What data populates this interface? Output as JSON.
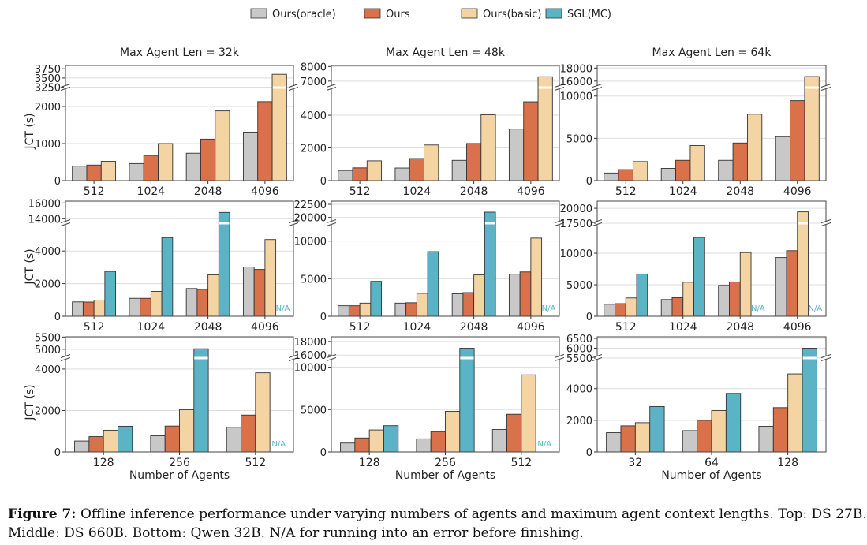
{
  "legend": [
    {
      "name": "Ours(oracle)",
      "color": "#c8c8c8"
    },
    {
      "name": "Ours",
      "color": "#d9714a"
    },
    {
      "name": "Ours(basic)",
      "color": "#f3d4a2"
    },
    {
      "name": "SGL(MC)",
      "color": "#5bb4c6"
    }
  ],
  "caption": {
    "label": "Figure 7:",
    "line1": " Offline inference performance under varying numbers of agents and maximum agent context lengths. Top: DS 27B.",
    "line2": "Middle: DS 660B. Bottom: Qwen 32B. N/A for running into an error before finishing."
  },
  "chart_data": [
    {
      "type": "bar",
      "title": "Max Agent Len = 32k",
      "ylabel": "JCT (s)",
      "xlabel": "",
      "categories": [
        "512",
        "1024",
        "2048",
        "4096"
      ],
      "broken_axis": true,
      "ylim_lower": [
        0,
        2510
      ],
      "ylim_upper": [
        3240,
        3840
      ],
      "yticks_lower": [
        0,
        1000,
        2000
      ],
      "yticks_upper": [
        3250,
        3500,
        3750
      ],
      "grid": true,
      "series": [
        {
          "name": "Ours(oracle)",
          "values": [
            390,
            460,
            740,
            1310
          ]
        },
        {
          "name": "Ours",
          "values": [
            420,
            680,
            1120,
            2130
          ]
        },
        {
          "name": "Ours(basic)",
          "values": [
            520,
            1000,
            1880,
            3600
          ]
        }
      ]
    },
    {
      "type": "bar",
      "title": "Max Agent Len = 48k",
      "ylabel": "",
      "xlabel": "",
      "categories": [
        "512",
        "1024",
        "2048",
        "4096"
      ],
      "broken_axis": true,
      "ylim_lower": [
        0,
        5690
      ],
      "ylim_upper": [
        6560,
        8070
      ],
      "yticks_lower": [
        0,
        2000,
        4000
      ],
      "yticks_upper": [
        7000,
        8000
      ],
      "grid": true,
      "series": [
        {
          "name": "Ours(oracle)",
          "values": [
            620,
            770,
            1240,
            3150
          ]
        },
        {
          "name": "Ours",
          "values": [
            780,
            1350,
            2270,
            4820
          ]
        },
        {
          "name": "Ours(basic)",
          "values": [
            1210,
            2180,
            4030,
            7300
          ]
        }
      ]
    },
    {
      "type": "bar",
      "title": "Max Agent Len = 64k",
      "ylabel": "",
      "xlabel": "",
      "categories": [
        "512",
        "1024",
        "2048",
        "4096"
      ],
      "broken_axis": true,
      "ylim_lower": [
        0,
        11000
      ],
      "ylim_upper": [
        15010,
        18400
      ],
      "yticks_lower": [
        0,
        5000,
        10000
      ],
      "yticks_upper": [
        16000,
        18000
      ],
      "grid": true,
      "series": [
        {
          "name": "Ours(oracle)",
          "values": [
            900,
            1450,
            2400,
            5200
          ]
        },
        {
          "name": "Ours",
          "values": [
            1300,
            2400,
            4450,
            9450
          ]
        },
        {
          "name": "Ours(basic)",
          "values": [
            2250,
            4150,
            7850,
            16700
          ]
        }
      ]
    },
    {
      "type": "bar",
      "title": "",
      "ylabel": "JCT (s)",
      "xlabel": "",
      "categories": [
        "512",
        "1024",
        "2048",
        "4096"
      ],
      "broken_axis": true,
      "ylim_lower": [
        0,
        5700
      ],
      "ylim_upper": [
        13430,
        16230
      ],
      "yticks_lower": [
        0,
        2000,
        4000
      ],
      "yticks_upper": [
        14000,
        16000
      ],
      "grid": true,
      "na_label": "N/A",
      "series": [
        {
          "name": "Ours(oracle)",
          "values": [
            880,
            1100,
            1700,
            3020
          ]
        },
        {
          "name": "Ours",
          "values": [
            870,
            1100,
            1650,
            2870
          ]
        },
        {
          "name": "Ours(basic)",
          "values": [
            990,
            1520,
            2540,
            4700
          ]
        },
        {
          "name": "SGL(MC)",
          "values": [
            2750,
            4820,
            14800,
            null
          ]
        }
      ]
    },
    {
      "type": "bar",
      "title": "",
      "ylabel": "",
      "xlabel": "",
      "categories": [
        "512",
        "1024",
        "2048",
        "4096"
      ],
      "broken_axis": true,
      "ylim_lower": [
        0,
        12380
      ],
      "ylim_upper": [
        18900,
        23100
      ],
      "yticks_lower": [
        0,
        5000,
        10000
      ],
      "yticks_upper": [
        20000,
        22500
      ],
      "grid": true,
      "na_label": "N/A",
      "series": [
        {
          "name": "Ours(oracle)",
          "values": [
            1400,
            1750,
            3000,
            5600
          ]
        },
        {
          "name": "Ours",
          "values": [
            1400,
            1800,
            3150,
            5900
          ]
        },
        {
          "name": "Ours(basic)",
          "values": [
            1750,
            3050,
            5500,
            10400
          ]
        },
        {
          "name": "SGL(MC)",
          "values": [
            4650,
            8600,
            21000,
            null
          ]
        }
      ]
    },
    {
      "type": "bar",
      "title": "",
      "ylabel": "",
      "xlabel": "",
      "categories": [
        "512",
        "1024",
        "2048",
        "4096"
      ],
      "broken_axis": true,
      "ylim_lower": [
        0,
        14750
      ],
      "ylim_upper": [
        17500,
        21200
      ],
      "yticks_lower": [
        0,
        5000,
        10000
      ],
      "yticks_upper": [
        17500,
        20000
      ],
      "grid": true,
      "na_label": "N/A",
      "series": [
        {
          "name": "Ours(oracle)",
          "values": [
            1900,
            2650,
            4900,
            9300
          ]
        },
        {
          "name": "Ours",
          "values": [
            2000,
            2950,
            5450,
            10400
          ]
        },
        {
          "name": "Ours(basic)",
          "values": [
            2900,
            5400,
            10100,
            19400
          ]
        },
        {
          "name": "SGL(MC)",
          "values": [
            6700,
            12500,
            null,
            null
          ]
        }
      ]
    },
    {
      "type": "bar",
      "title": "",
      "ylabel": "JCT (s)",
      "xlabel": "Number of Agents",
      "categories": [
        "128",
        "256",
        "512"
      ],
      "broken_axis": true,
      "ylim_lower": [
        0,
        4530
      ],
      "ylim_upper": [
        4640,
        5510
      ],
      "yticks_lower": [
        0,
        2000,
        4000
      ],
      "yticks_upper": [
        5000,
        5500
      ],
      "grid": true,
      "na_label": "N/A",
      "series": [
        {
          "name": "Ours(oracle)",
          "values": [
            530,
            780,
            1190
          ]
        },
        {
          "name": "Ours",
          "values": [
            740,
            1250,
            1780
          ]
        },
        {
          "name": "Ours(basic)",
          "values": [
            1050,
            2040,
            3820
          ]
        },
        {
          "name": "SGL(MC)",
          "values": [
            1240,
            5020,
            null
          ]
        }
      ]
    },
    {
      "type": "bar",
      "title": "",
      "ylabel": "",
      "xlabel": "Number of Agents",
      "categories": [
        "128",
        "256",
        "512"
      ],
      "broken_axis": true,
      "ylim_lower": [
        0,
        11080
      ],
      "ylim_upper": [
        15560,
        18680
      ],
      "yticks_lower": [
        0,
        5000,
        10000
      ],
      "yticks_upper": [
        16000,
        18000
      ],
      "grid": true,
      "na_label": "N/A",
      "series": [
        {
          "name": "Ours(oracle)",
          "values": [
            1050,
            1550,
            2650
          ]
        },
        {
          "name": "Ours",
          "values": [
            1650,
            2400,
            4450
          ]
        },
        {
          "name": "Ours(basic)",
          "values": [
            2600,
            4800,
            9100
          ]
        },
        {
          "name": "SGL(MC)",
          "values": [
            3100,
            17000,
            null
          ]
        }
      ]
    },
    {
      "type": "bar",
      "title": "",
      "ylabel": "",
      "xlabel": "Number of Agents",
      "categories": [
        "32",
        "64",
        "128"
      ],
      "broken_axis": true,
      "ylim_lower": [
        0,
        5930
      ],
      "ylim_upper": [
        5500,
        6580
      ],
      "yticks_lower": [
        0,
        2000,
        4000
      ],
      "yticks_upper": [
        5500,
        6000,
        6500
      ],
      "grid": true,
      "series": [
        {
          "name": "Ours(oracle)",
          "values": [
            1220,
            1350,
            1620
          ]
        },
        {
          "name": "Ours",
          "values": [
            1650,
            2000,
            2800
          ]
        },
        {
          "name": "Ours(basic)",
          "values": [
            1850,
            2620,
            4930
          ]
        },
        {
          "name": "SGL(MC)",
          "values": [
            2870,
            3700,
            6000
          ]
        }
      ]
    }
  ]
}
